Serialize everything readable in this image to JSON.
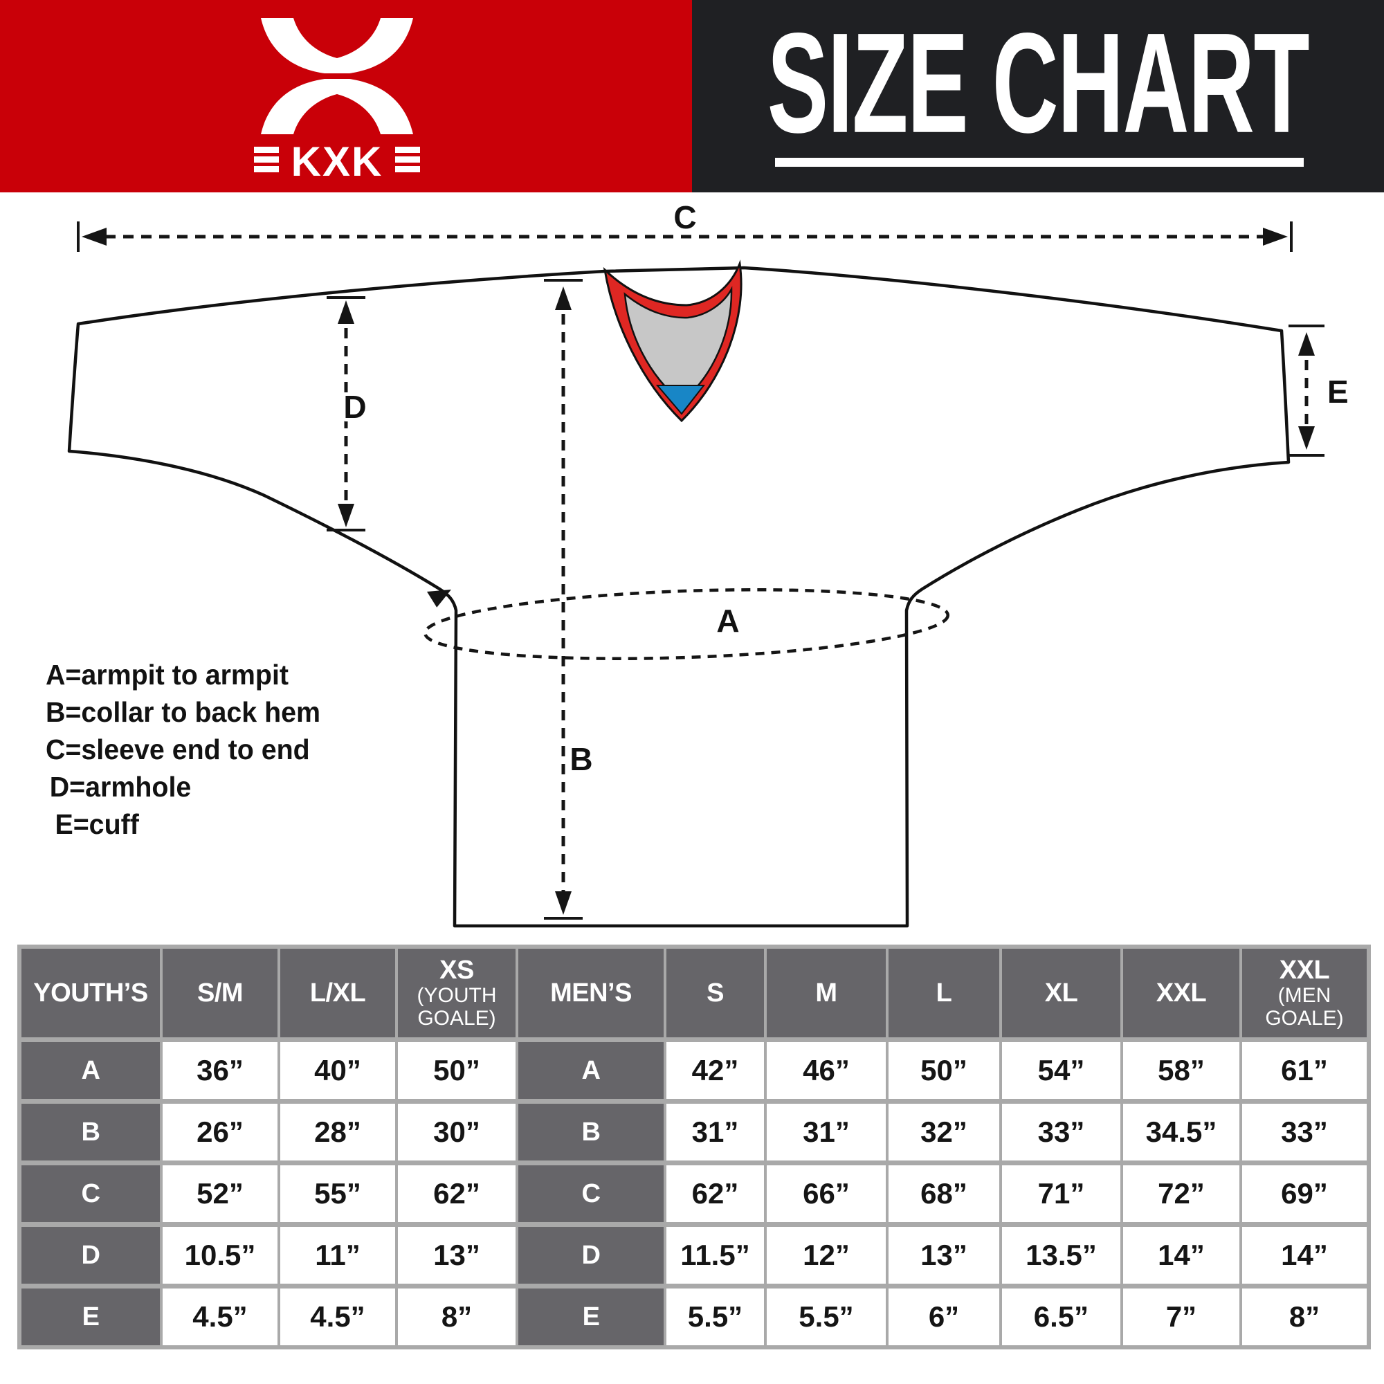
{
  "colors": {
    "header_red": "#c90008",
    "header_black": "#1f2023",
    "table_dark": "#666569",
    "separator": "#a9a9a9",
    "collar_red": "#df2723",
    "collar_gray": "#c7c7c7",
    "collar_blue": "#1886c6"
  },
  "header": {
    "brand": {
      "logo_text": "KXK"
    },
    "title": "SIZE CHART"
  },
  "diagram": {
    "labels": {
      "A": "A",
      "B": "B",
      "C": "C",
      "D": "D",
      "E": "E"
    },
    "legend": [
      "A=armpit to armpit",
      "B=collar to back hem",
      "C=sleeve end to end",
      "D=armhole",
      "E=cuff"
    ]
  },
  "chart_data": {
    "type": "table",
    "title": "SIZE CHART",
    "measurements": {
      "A": "armpit to armpit",
      "B": "collar to back hem",
      "C": "sleeve end to end",
      "D": "armhole",
      "E": "cuff"
    },
    "row_order": [
      "A",
      "B",
      "C",
      "D",
      "E"
    ],
    "youth": {
      "header": "YOUTH’S",
      "sizes": [
        {
          "label": "S/M"
        },
        {
          "label": "L/XL"
        },
        {
          "label": "XS",
          "sub": "(YOUTH GOALE)"
        }
      ],
      "values": {
        "A": [
          "36”",
          "40”",
          "50”"
        ],
        "B": [
          "26”",
          "28”",
          "30”"
        ],
        "C": [
          "52”",
          "55”",
          "62”"
        ],
        "D": [
          "10.5”",
          "11”",
          "13”"
        ],
        "E": [
          "4.5”",
          "4.5”",
          "8”"
        ]
      }
    },
    "men": {
      "header": "MEN’S",
      "sizes": [
        {
          "label": "S"
        },
        {
          "label": "M"
        },
        {
          "label": "L"
        },
        {
          "label": "XL"
        },
        {
          "label": "XXL"
        },
        {
          "label": "XXL",
          "sub": "(MEN GOALE)"
        }
      ],
      "values": {
        "A": [
          "42”",
          "46”",
          "50”",
          "54”",
          "58”",
          "61”"
        ],
        "B": [
          "31”",
          "31”",
          "32”",
          "33”",
          "34.5”",
          "33”"
        ],
        "C": [
          "62”",
          "66”",
          "68”",
          "71”",
          "72”",
          "69”"
        ],
        "D": [
          "11.5”",
          "12”",
          "13”",
          "13.5”",
          "14”",
          "14”"
        ],
        "E": [
          "5.5”",
          "5.5”",
          "6”",
          "6.5”",
          "7”",
          "8”"
        ]
      }
    }
  }
}
